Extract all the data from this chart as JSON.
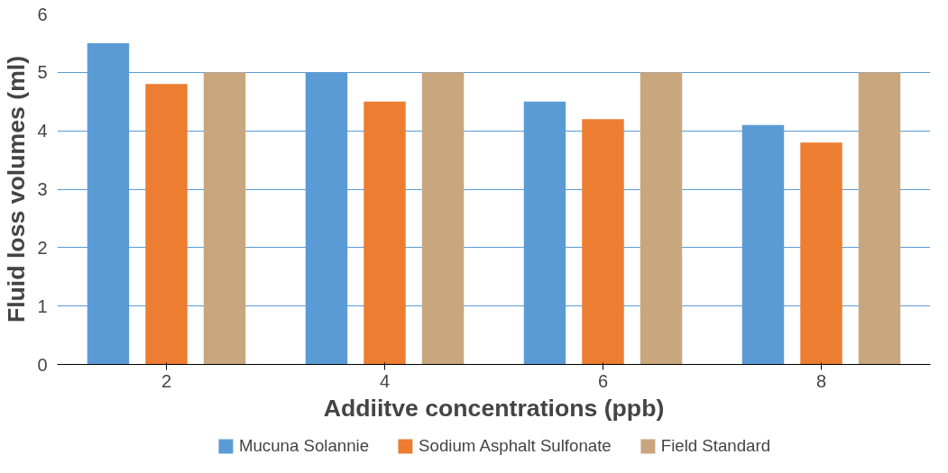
{
  "chart_data": {
    "type": "bar",
    "xlabel": "Addiitve concentrations (ppb)",
    "ylabel": "Fluid loss volumes (ml)",
    "categories": [
      "2",
      "4",
      "6",
      "8"
    ],
    "series": [
      {
        "name": "Mucuna Solannie",
        "color": "#5b9bd5",
        "values": [
          5.5,
          5.0,
          4.5,
          4.1
        ]
      },
      {
        "name": "Sodium Asphalt Sulfonate",
        "color": "#ed7d31",
        "values": [
          4.8,
          4.5,
          4.2,
          3.8
        ]
      },
      {
        "name": "Field Standard",
        "color": "#c8a77f",
        "values": [
          5.0,
          5.0,
          5.0,
          5.0
        ]
      }
    ],
    "ylim": [
      0,
      6
    ],
    "yticks": [
      0,
      1,
      2,
      3,
      4,
      5,
      6
    ],
    "grid": "y",
    "legend": "bottom"
  }
}
